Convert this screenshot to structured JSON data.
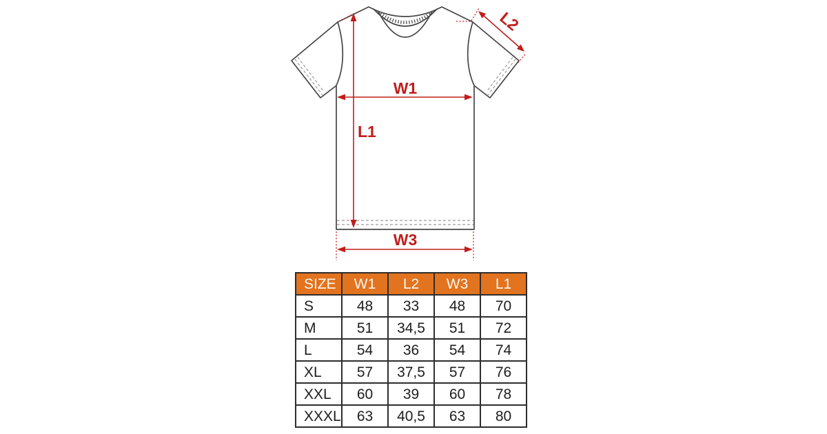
{
  "colors": {
    "background": "#ffffff",
    "accent_red": "#c11d1d",
    "shirt_outline": "#454545",
    "stitch_gray": "#9b9b9b",
    "table_border": "#2d2d2d",
    "table_header_bg": "#e2731f",
    "table_header_text": "#fdf8ef",
    "cell_text": "#1d1d1d"
  },
  "diagram": {
    "labels": {
      "w1": "W1",
      "l1": "L1",
      "l2": "L2",
      "w3": "W3"
    }
  },
  "table": {
    "columns": [
      "SIZE",
      "W1",
      "L2",
      "W3",
      "L1"
    ],
    "rows": [
      [
        "S",
        "48",
        "33",
        "48",
        "70"
      ],
      [
        "M",
        "51",
        "34,5",
        "51",
        "72"
      ],
      [
        "L",
        "54",
        "36",
        "54",
        "74"
      ],
      [
        "XL",
        "57",
        "37,5",
        "57",
        "76"
      ],
      [
        "XXL",
        "60",
        "39",
        "60",
        "78"
      ],
      [
        "XXXL",
        "63",
        "40,5",
        "63",
        "80"
      ]
    ]
  }
}
